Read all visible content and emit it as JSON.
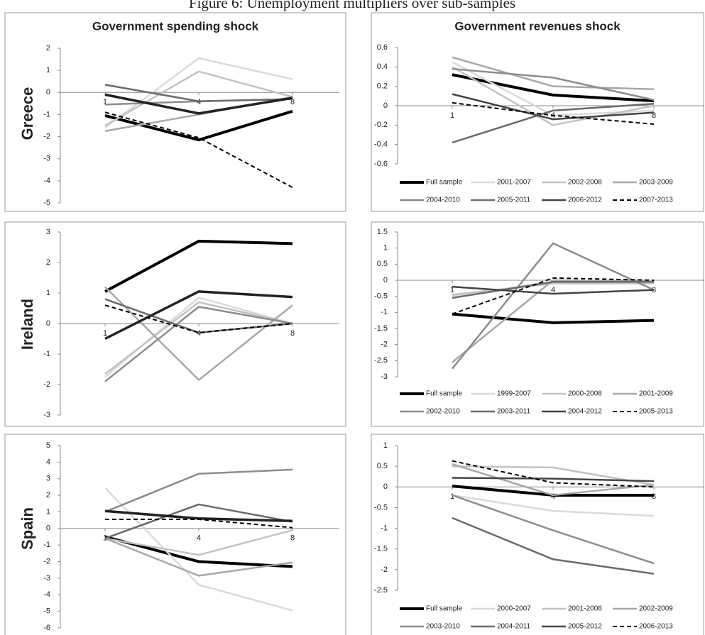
{
  "figure_title": "Figure 6: Unemployment multipliers over sub-samples",
  "chart_data": [
    {
      "type": "line",
      "title": "Government spending shock",
      "ylabel": "Greece",
      "categories": [
        "1",
        "4",
        "8"
      ],
      "ylim": [
        -5,
        2
      ],
      "yticks": [
        -5,
        -4,
        -3,
        -2,
        -1,
        0,
        1,
        2
      ],
      "series": [
        {
          "color": "#000000",
          "width": 4,
          "values": [
            -1.05,
            -2.15,
            -0.85
          ]
        },
        {
          "color": "#dadada",
          "width": 2.5,
          "values": [
            -1.6,
            1.55,
            0.6
          ]
        },
        {
          "color": "#c2c2c2",
          "width": 2.5,
          "values": [
            -1.5,
            0.95,
            -0.2
          ]
        },
        {
          "color": "#a8a8a8",
          "width": 2.5,
          "values": [
            -1.75,
            -1.0,
            -0.2
          ]
        },
        {
          "color": "#8c8c8c",
          "width": 2.5,
          "values": [
            -0.55,
            -0.4,
            -0.3
          ]
        },
        {
          "color": "#6a6a6a",
          "width": 2.5,
          "values": [
            0.35,
            -0.4,
            -0.3
          ]
        },
        {
          "color": "#222222",
          "width": 3.5,
          "values": [
            -0.1,
            -0.95,
            -0.25
          ]
        },
        {
          "color": "#000000",
          "width": 2,
          "dash": true,
          "values": [
            -0.9,
            -2.05,
            -4.3
          ]
        }
      ]
    },
    {
      "type": "line",
      "title": "Government revenues shock",
      "categories": [
        "1",
        "4",
        "8"
      ],
      "ylim": [
        -0.6,
        0.6
      ],
      "yticks": [
        -0.6,
        -0.4,
        -0.2,
        0,
        0.2,
        0.4,
        0.6
      ],
      "series": [
        {
          "name": "Full sample",
          "color": "#000000",
          "width": 4,
          "values": [
            0.32,
            0.11,
            0.05
          ]
        },
        {
          "name": "2001-2007",
          "color": "#dadada",
          "width": 2.5,
          "values": [
            0.45,
            -0.1,
            -0.05
          ]
        },
        {
          "name": "2002-2008",
          "color": "#c2c2c2",
          "width": 2.5,
          "values": [
            0.4,
            -0.2,
            0.0
          ]
        },
        {
          "name": "2003-2009",
          "color": "#a8a8a8",
          "width": 2.5,
          "values": [
            0.5,
            0.2,
            0.17
          ]
        },
        {
          "name": "2004-2010",
          "color": "#8c8c8c",
          "width": 2.5,
          "values": [
            0.38,
            0.29,
            0.06
          ]
        },
        {
          "name": "2005-2011",
          "color": "#6a6a6a",
          "width": 2.5,
          "values": [
            -0.38,
            -0.05,
            0.02
          ]
        },
        {
          "name": "2006-2012",
          "color": "#444444",
          "width": 2.5,
          "values": [
            0.12,
            -0.14,
            -0.07
          ]
        },
        {
          "name": "2007-2013",
          "color": "#000000",
          "width": 2,
          "dash": true,
          "values": [
            0.03,
            -0.1,
            -0.19
          ]
        }
      ]
    },
    {
      "type": "line",
      "ylabel": "Ireland",
      "categories": [
        "1",
        "4",
        "8"
      ],
      "ylim": [
        -3,
        3
      ],
      "yticks": [
        -3,
        -2,
        -1,
        0,
        1,
        2,
        3
      ],
      "series": [
        {
          "color": "#000000",
          "width": 4,
          "values": [
            1.05,
            2.7,
            2.62
          ]
        },
        {
          "color": "#dadada",
          "width": 2.5,
          "values": [
            -1.75,
            0.85,
            0.0
          ]
        },
        {
          "color": "#c2c2c2",
          "width": 2.5,
          "values": [
            -1.65,
            0.7,
            0.0
          ]
        },
        {
          "color": "#a8a8a8",
          "width": 2.5,
          "values": [
            1.2,
            -1.85,
            0.6
          ]
        },
        {
          "color": "#8c8c8c",
          "width": 2.5,
          "values": [
            -1.9,
            0.55,
            0.0
          ]
        },
        {
          "color": "#6a6a6a",
          "width": 2.5,
          "values": [
            0.8,
            -0.3,
            0.0
          ]
        },
        {
          "color": "#222222",
          "width": 3.5,
          "values": [
            -0.5,
            1.05,
            0.87
          ]
        },
        {
          "color": "#000000",
          "width": 2,
          "dash": true,
          "values": [
            0.6,
            -0.3,
            0.0
          ]
        }
      ]
    },
    {
      "type": "line",
      "categories": [
        "1",
        "4",
        "8"
      ],
      "ylim": [
        -3,
        1.5
      ],
      "yticks": [
        -3,
        -2.5,
        -2,
        -1.5,
        -1,
        -0.5,
        0,
        0.5,
        1,
        1.5
      ],
      "series": [
        {
          "name": "Full sample",
          "color": "#000000",
          "width": 4,
          "values": [
            -1.05,
            -1.32,
            -1.25
          ]
        },
        {
          "name": "1999-2007",
          "color": "#dadada",
          "width": 2.5,
          "values": [
            -0.5,
            -0.05,
            -0.05
          ]
        },
        {
          "name": "2000-2008",
          "color": "#c2c2c2",
          "width": 2.5,
          "values": [
            -0.45,
            -0.1,
            -0.1
          ]
        },
        {
          "name": "2001-2009",
          "color": "#a8a8a8",
          "width": 2.5,
          "values": [
            -2.55,
            0.0,
            -0.05
          ]
        },
        {
          "name": "2002-2010",
          "color": "#8c8c8c",
          "width": 2.5,
          "values": [
            -2.75,
            1.15,
            -0.3
          ]
        },
        {
          "name": "2003-2011",
          "color": "#6a6a6a",
          "width": 2.5,
          "values": [
            -0.55,
            -0.05,
            -0.05
          ]
        },
        {
          "name": "2004-2012",
          "color": "#444444",
          "width": 2.5,
          "values": [
            -0.2,
            -0.42,
            -0.3
          ]
        },
        {
          "name": "2005-2013",
          "color": "#000000",
          "width": 2,
          "dash": true,
          "values": [
            -1.05,
            0.07,
            0.0
          ]
        }
      ]
    },
    {
      "type": "line",
      "ylabel": "Spain",
      "categories": [
        "1",
        "4",
        "8"
      ],
      "ylim": [
        -6,
        5
      ],
      "yticks": [
        -6,
        -5,
        -4,
        -3,
        -2,
        -1,
        0,
        1,
        2,
        3,
        4,
        5
      ],
      "series": [
        {
          "color": "#000000",
          "width": 4,
          "values": [
            -0.5,
            -2.0,
            -2.3
          ]
        },
        {
          "color": "#dadada",
          "width": 2.5,
          "values": [
            2.45,
            -3.4,
            -4.95
          ]
        },
        {
          "color": "#c2c2c2",
          "width": 2.5,
          "values": [
            -0.6,
            -1.6,
            -0.1
          ]
        },
        {
          "color": "#8c8c8c",
          "width": 2.5,
          "values": [
            1.0,
            3.3,
            3.55
          ]
        },
        {
          "color": "#a8a8a8",
          "width": 2.5,
          "values": [
            -0.6,
            -2.85,
            -2.05
          ]
        },
        {
          "color": "#6a6a6a",
          "width": 2.5,
          "values": [
            -0.6,
            1.45,
            0.4
          ]
        },
        {
          "color": "#222222",
          "width": 3.5,
          "values": [
            1.05,
            0.6,
            0.45
          ]
        },
        {
          "color": "#000000",
          "width": 2,
          "dash": true,
          "values": [
            0.55,
            0.55,
            0.05
          ]
        }
      ]
    },
    {
      "type": "line",
      "categories": [
        "1",
        "4",
        "8"
      ],
      "ylim": [
        -2.5,
        1
      ],
      "yticks": [
        -2.5,
        -2,
        -1.5,
        -1,
        -0.5,
        0,
        0.5,
        1
      ],
      "series": [
        {
          "name": "Full sample",
          "color": "#000000",
          "width": 4,
          "values": [
            0.02,
            -0.2,
            -0.2
          ]
        },
        {
          "name": "2000-2007",
          "color": "#dadada",
          "width": 2.5,
          "values": [
            -0.2,
            -0.58,
            -0.7
          ]
        },
        {
          "name": "2001-2008",
          "color": "#c2c2c2",
          "width": 2.5,
          "values": [
            0.5,
            0.47,
            0.05
          ]
        },
        {
          "name": "2002-2009",
          "color": "#a8a8a8",
          "width": 2.5,
          "values": [
            0.55,
            -0.2,
            0.05
          ]
        },
        {
          "name": "2003-2010",
          "color": "#8c8c8c",
          "width": 2.5,
          "values": [
            -0.2,
            -1.05,
            -1.85
          ]
        },
        {
          "name": "2004-2011",
          "color": "#6a6a6a",
          "width": 2.5,
          "values": [
            -0.75,
            -1.75,
            -2.1
          ]
        },
        {
          "name": "2005-2012",
          "color": "#444444",
          "width": 2.5,
          "values": [
            0.22,
            0.2,
            0.14
          ]
        },
        {
          "name": "2006-2013",
          "color": "#000000",
          "width": 2,
          "dash": true,
          "values": [
            0.63,
            0.1,
            0.0
          ]
        }
      ]
    }
  ]
}
